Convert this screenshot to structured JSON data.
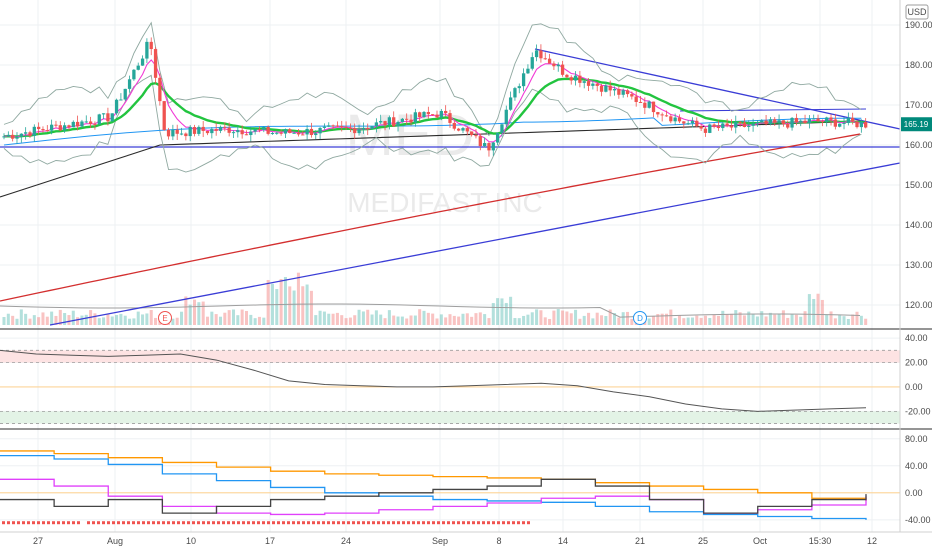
{
  "header": {
    "currency": "USD"
  },
  "watermark": {
    "symbol": "MED",
    "symbol_tail": "",
    "company": "MEDIFAST INC"
  },
  "colors": {
    "up": "#26a69a",
    "down": "#ef5350",
    "ema_fast": "#f23ad6",
    "ema_mid": "#22c43f",
    "sma_long": "#000000",
    "sma_200": "#d32f2f",
    "trend": "#3a3dd6",
    "last_price_bg": "#00897b",
    "orange": "#ff9800",
    "blue": "#2196f3",
    "magenta": "#e040fb"
  },
  "chart_data": [
    {
      "type": "candlestick",
      "pane": "price",
      "x_labels": [
        "27",
        "Aug",
        "10",
        "17",
        "24",
        "Sep",
        "8",
        "14",
        "21",
        "25",
        "Oct",
        "15:30",
        "12"
      ],
      "y_ticks": [
        "190.00",
        "180.00",
        "170.00",
        "160.00",
        "150.00",
        "140.00",
        "130.00",
        "120.00"
      ],
      "y_range": [
        115,
        195
      ],
      "last_price": "165.19",
      "event_markers": [
        "E",
        "D"
      ],
      "key_ohlc": [
        {
          "x": "27",
          "c": 162
        },
        {
          "x": "Aug",
          "c": 167
        },
        {
          "x": "early Aug peak",
          "c": 186
        },
        {
          "x": "10",
          "c": 165
        },
        {
          "x": "17",
          "c": 163
        },
        {
          "x": "24",
          "c": 164
        },
        {
          "x": "Sep",
          "c": 168
        },
        {
          "x": "8",
          "c": 159
        },
        {
          "x": "mid Sep peak",
          "c": 184
        },
        {
          "x": "14",
          "c": 178
        },
        {
          "x": "21",
          "c": 171
        },
        {
          "x": "25",
          "c": 164
        },
        {
          "x": "Oct",
          "c": 165
        },
        {
          "x": "15:30",
          "c": 166
        },
        {
          "x": "12",
          "c": 165.19
        }
      ],
      "volume": "bars at bottom of price pane, spikes near early Aug and mid Sep"
    },
    {
      "type": "line",
      "pane": "oscillator-1",
      "y_ticks": [
        "40.00",
        "20.00",
        "0.00",
        "-20.00"
      ],
      "y_range": [
        -32,
        45
      ],
      "series": [
        {
          "values": [
            30,
            27,
            26,
            25,
            26,
            27,
            22,
            14,
            5,
            2,
            1,
            0,
            0,
            1,
            2,
            3,
            1,
            -4,
            -8,
            -14,
            -18,
            -20,
            -19,
            -18,
            -17
          ]
        }
      ]
    },
    {
      "type": "line",
      "pane": "oscillator-2",
      "y_ticks": [
        "80.00",
        "40.00",
        "0.00",
        "-40.00"
      ],
      "y_range": [
        -55,
        90
      ],
      "series": [
        {
          "color": "orange",
          "values": [
            62,
            58,
            52,
            45,
            38,
            32,
            28,
            26,
            24,
            22,
            20,
            15,
            10,
            5,
            0,
            -8,
            -12
          ]
        },
        {
          "color": "blue",
          "values": [
            55,
            50,
            42,
            28,
            18,
            8,
            0,
            -5,
            -10,
            -12,
            -14,
            -20,
            -28,
            -32,
            -35,
            -38,
            -40
          ]
        },
        {
          "color": "magenta",
          "values": [
            20,
            10,
            -5,
            -20,
            -30,
            -32,
            -30,
            -25,
            -20,
            -15,
            -8,
            -5,
            -10,
            -30,
            -25,
            -18,
            -5
          ]
        },
        {
          "color": "black",
          "values": [
            -10,
            -20,
            -10,
            -30,
            -20,
            -10,
            -5,
            0,
            5,
            10,
            20,
            10,
            -10,
            -30,
            -20,
            -10,
            -2
          ]
        }
      ]
    }
  ]
}
